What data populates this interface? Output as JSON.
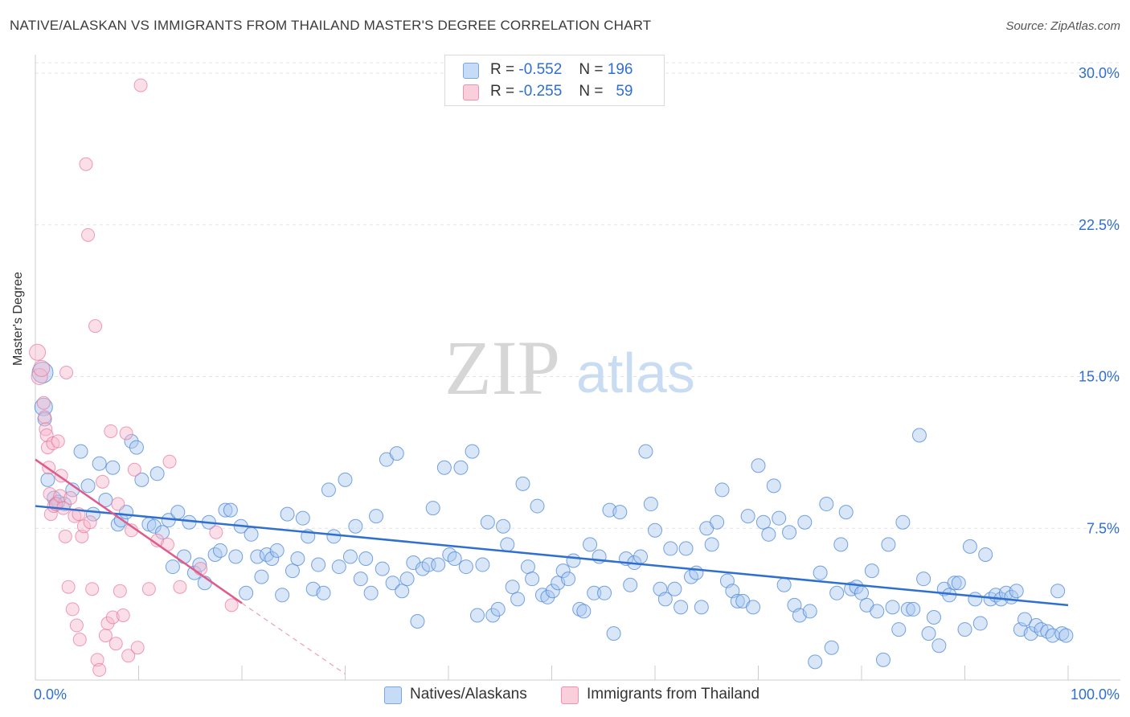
{
  "title": "NATIVE/ALASKAN VS IMMIGRANTS FROM THAILAND MASTER'S DEGREE CORRELATION CHART",
  "source": "Source: ZipAtlas.com",
  "watermark": {
    "zip": "ZIP",
    "atlas": "atlas"
  },
  "legend_top": [
    {
      "r_label": "R =",
      "r_value": "-0.552",
      "n_label": "N =",
      "n_value": "196",
      "color": "#a8c8f0"
    },
    {
      "r_label": "R =",
      "r_value": "-0.255",
      "n_label": "N =",
      "n_value": "59",
      "color": "#f6b8cb"
    }
  ],
  "legend_bottom": [
    {
      "label": "Natives/Alaskans",
      "color": "#a8c8f0"
    },
    {
      "label": "Immigrants from Thailand",
      "color": "#f6b8cb"
    }
  ],
  "chart_data": {
    "type": "scatter",
    "title": "NATIVE/ALASKAN VS IMMIGRANTS FROM THAILAND MASTER'S DEGREE CORRELATION CHART",
    "xlabel": "",
    "ylabel": "Master's Degree",
    "xlim": [
      0,
      100
    ],
    "ylim": [
      0,
      30
    ],
    "x_tick_labels": [
      "0.0%",
      "100.0%"
    ],
    "y_ticks": [
      7.5,
      15.0,
      22.5,
      30.0
    ],
    "y_tick_labels": [
      "7.5%",
      "15.0%",
      "22.5%",
      "30.0%"
    ],
    "grid": true,
    "legend_position": "top-center",
    "colors": {
      "natives": "#4a86d8",
      "natives_fill": "#a8c8f0",
      "thailand": "#e8739a",
      "thailand_fill": "#f6b8cb"
    },
    "series": [
      {
        "name": "Natives/Alaskans",
        "r": -0.552,
        "n": 196,
        "trend": {
          "x": [
            0,
            100
          ],
          "y": [
            8.6,
            3.7
          ]
        },
        "points": [
          [
            0.7,
            15.2
          ],
          [
            0.8,
            13.5
          ],
          [
            0.9,
            12.9
          ],
          [
            1.2,
            9.9
          ],
          [
            1.8,
            9.0
          ],
          [
            2.0,
            8.7
          ],
          [
            2.2,
            8.8
          ],
          [
            2.8,
            8.7
          ],
          [
            3.6,
            9.4
          ],
          [
            4.4,
            11.3
          ],
          [
            5.1,
            9.6
          ],
          [
            5.6,
            8.2
          ],
          [
            6.2,
            10.7
          ],
          [
            6.8,
            8.9
          ],
          [
            7.5,
            10.5
          ],
          [
            8.0,
            7.7
          ],
          [
            8.3,
            7.9
          ],
          [
            8.8,
            8.3
          ],
          [
            9.3,
            11.8
          ],
          [
            9.8,
            11.5
          ],
          [
            10.3,
            9.9
          ],
          [
            11.0,
            7.7
          ],
          [
            11.5,
            7.6
          ],
          [
            11.8,
            10.2
          ],
          [
            12.3,
            7.3
          ],
          [
            12.9,
            7.9
          ],
          [
            13.3,
            5.6
          ],
          [
            13.8,
            8.3
          ],
          [
            14.4,
            6.1
          ],
          [
            14.9,
            7.8
          ],
          [
            15.4,
            5.3
          ],
          [
            15.9,
            5.7
          ],
          [
            16.4,
            4.8
          ],
          [
            16.8,
            7.8
          ],
          [
            17.4,
            6.2
          ],
          [
            17.9,
            6.4
          ],
          [
            18.4,
            8.4
          ],
          [
            18.9,
            8.4
          ],
          [
            19.4,
            6.1
          ],
          [
            19.9,
            7.6
          ],
          [
            20.4,
            4.3
          ],
          [
            20.9,
            7.2
          ],
          [
            21.5,
            6.1
          ],
          [
            21.9,
            5.1
          ],
          [
            22.4,
            6.2
          ],
          [
            22.9,
            6.0
          ],
          [
            23.4,
            6.4
          ],
          [
            23.9,
            4.2
          ],
          [
            24.4,
            8.2
          ],
          [
            24.9,
            5.4
          ],
          [
            25.4,
            6.0
          ],
          [
            25.9,
            8.0
          ],
          [
            26.4,
            7.1
          ],
          [
            26.9,
            4.5
          ],
          [
            27.4,
            5.7
          ],
          [
            27.9,
            4.3
          ],
          [
            28.4,
            9.4
          ],
          [
            28.9,
            7.1
          ],
          [
            29.4,
            5.6
          ],
          [
            30.0,
            9.9
          ],
          [
            30.5,
            6.1
          ],
          [
            31.0,
            7.6
          ],
          [
            31.5,
            5.0
          ],
          [
            32.0,
            6.0
          ],
          [
            32.5,
            4.3
          ],
          [
            33.0,
            8.1
          ],
          [
            33.6,
            5.5
          ],
          [
            34.0,
            10.9
          ],
          [
            34.6,
            4.8
          ],
          [
            35.0,
            11.2
          ],
          [
            35.5,
            4.4
          ],
          [
            36.0,
            5.0
          ],
          [
            36.6,
            5.8
          ],
          [
            37.0,
            2.9
          ],
          [
            37.5,
            5.5
          ],
          [
            38.1,
            5.7
          ],
          [
            38.5,
            8.5
          ],
          [
            39.0,
            5.7
          ],
          [
            39.6,
            10.5
          ],
          [
            40.1,
            6.2
          ],
          [
            40.6,
            6.0
          ],
          [
            41.2,
            10.5
          ],
          [
            41.7,
            5.6
          ],
          [
            42.3,
            11.3
          ],
          [
            42.8,
            3.2
          ],
          [
            43.3,
            5.7
          ],
          [
            43.8,
            7.8
          ],
          [
            44.3,
            3.2
          ],
          [
            44.8,
            3.5
          ],
          [
            45.3,
            7.6
          ],
          [
            45.7,
            6.7
          ],
          [
            46.2,
            4.6
          ],
          [
            46.7,
            4.0
          ],
          [
            47.2,
            9.7
          ],
          [
            47.7,
            5.6
          ],
          [
            48.1,
            5.0
          ],
          [
            48.6,
            8.6
          ],
          [
            49.1,
            4.2
          ],
          [
            49.6,
            4.1
          ],
          [
            50.1,
            4.4
          ],
          [
            50.6,
            4.8
          ],
          [
            51.1,
            5.4
          ],
          [
            51.6,
            5.0
          ],
          [
            52.1,
            5.9
          ],
          [
            52.7,
            3.5
          ],
          [
            53.1,
            3.4
          ],
          [
            53.7,
            6.7
          ],
          [
            54.1,
            4.3
          ],
          [
            54.6,
            6.1
          ],
          [
            55.1,
            4.3
          ],
          [
            55.6,
            8.4
          ],
          [
            56.0,
            2.3
          ],
          [
            56.6,
            8.3
          ],
          [
            57.2,
            6.0
          ],
          [
            57.6,
            4.7
          ],
          [
            58.0,
            5.8
          ],
          [
            58.6,
            6.1
          ],
          [
            59.1,
            11.3
          ],
          [
            59.6,
            8.7
          ],
          [
            60.0,
            7.4
          ],
          [
            60.5,
            4.5
          ],
          [
            61.0,
            4.0
          ],
          [
            61.5,
            6.5
          ],
          [
            61.9,
            4.5
          ],
          [
            62.5,
            3.6
          ],
          [
            63.0,
            6.5
          ],
          [
            63.5,
            5.1
          ],
          [
            64.0,
            5.3
          ],
          [
            64.5,
            3.6
          ],
          [
            65.0,
            7.5
          ],
          [
            65.5,
            6.7
          ],
          [
            66.0,
            7.8
          ],
          [
            66.5,
            9.4
          ],
          [
            67.0,
            4.9
          ],
          [
            67.5,
            4.4
          ],
          [
            68.0,
            3.9
          ],
          [
            68.5,
            3.9
          ],
          [
            69.0,
            8.1
          ],
          [
            69.5,
            3.6
          ],
          [
            70.0,
            10.6
          ],
          [
            70.5,
            7.8
          ],
          [
            71.0,
            7.2
          ],
          [
            71.5,
            9.6
          ],
          [
            72.0,
            8.0
          ],
          [
            72.5,
            4.7
          ],
          [
            73.0,
            7.3
          ],
          [
            73.5,
            3.7
          ],
          [
            74.0,
            3.2
          ],
          [
            74.5,
            7.8
          ],
          [
            75.0,
            3.4
          ],
          [
            75.5,
            0.9
          ],
          [
            76.0,
            5.3
          ],
          [
            76.6,
            8.7
          ],
          [
            77.1,
            1.6
          ],
          [
            77.6,
            4.3
          ],
          [
            78.0,
            6.7
          ],
          [
            78.5,
            8.3
          ],
          [
            79.0,
            4.5
          ],
          [
            79.5,
            4.6
          ],
          [
            80.0,
            4.3
          ],
          [
            80.5,
            3.7
          ],
          [
            81.0,
            5.4
          ],
          [
            81.5,
            3.4
          ],
          [
            82.1,
            1.0
          ],
          [
            82.6,
            6.7
          ],
          [
            83.0,
            3.6
          ],
          [
            83.6,
            2.5
          ],
          [
            84.0,
            7.8
          ],
          [
            84.5,
            3.5
          ],
          [
            85.0,
            3.5
          ],
          [
            85.6,
            12.1
          ],
          [
            86.0,
            5.0
          ],
          [
            86.5,
            2.3
          ],
          [
            87.0,
            3.1
          ],
          [
            87.5,
            1.7
          ],
          [
            88.0,
            4.5
          ],
          [
            88.5,
            4.2
          ],
          [
            89.0,
            4.8
          ],
          [
            89.4,
            4.8
          ],
          [
            90.0,
            2.5
          ],
          [
            90.5,
            6.6
          ],
          [
            91.0,
            4.0
          ],
          [
            91.5,
            2.8
          ],
          [
            92.0,
            6.2
          ],
          [
            92.5,
            4.0
          ],
          [
            93.0,
            4.2
          ],
          [
            93.5,
            4.0
          ],
          [
            94.0,
            4.3
          ],
          [
            94.5,
            4.1
          ],
          [
            95.0,
            4.4
          ],
          [
            95.4,
            2.5
          ],
          [
            95.8,
            3.0
          ],
          [
            96.4,
            2.3
          ],
          [
            96.9,
            2.7
          ],
          [
            97.4,
            2.5
          ],
          [
            98.0,
            2.4
          ],
          [
            98.5,
            2.2
          ],
          [
            99.0,
            4.4
          ],
          [
            99.4,
            2.3
          ],
          [
            99.8,
            2.2
          ]
        ]
      },
      {
        "name": "Immigrants from Thailand",
        "r": -0.255,
        "n": 59,
        "trend": {
          "x": [
            0,
            20
          ],
          "y": [
            10.9,
            3.8
          ]
        },
        "trend_dashed": {
          "x": [
            20,
            30
          ],
          "y": [
            3.8,
            0.3
          ]
        },
        "points": [
          [
            0.2,
            16.2
          ],
          [
            0.4,
            15.0
          ],
          [
            0.6,
            15.4
          ],
          [
            0.8,
            13.7
          ],
          [
            0.9,
            13.0
          ],
          [
            1.0,
            12.4
          ],
          [
            1.1,
            12.1
          ],
          [
            1.2,
            11.5
          ],
          [
            1.3,
            10.5
          ],
          [
            1.4,
            9.2
          ],
          [
            1.5,
            8.2
          ],
          [
            1.7,
            11.7
          ],
          [
            1.8,
            8.6
          ],
          [
            2.0,
            8.7
          ],
          [
            2.2,
            11.8
          ],
          [
            2.4,
            9.1
          ],
          [
            2.5,
            10.1
          ],
          [
            2.7,
            8.5
          ],
          [
            2.9,
            7.1
          ],
          [
            3.0,
            15.2
          ],
          [
            3.2,
            4.6
          ],
          [
            3.4,
            9.0
          ],
          [
            3.6,
            3.5
          ],
          [
            3.8,
            8.1
          ],
          [
            4.0,
            2.7
          ],
          [
            4.2,
            8.2
          ],
          [
            4.3,
            2.0
          ],
          [
            4.5,
            7.1
          ],
          [
            4.7,
            7.6
          ],
          [
            4.9,
            25.5
          ],
          [
            5.1,
            22.0
          ],
          [
            5.3,
            7.8
          ],
          [
            5.5,
            4.5
          ],
          [
            5.8,
            17.5
          ],
          [
            6.0,
            1.0
          ],
          [
            6.2,
            0.5
          ],
          [
            6.5,
            9.8
          ],
          [
            6.8,
            2.2
          ],
          [
            7.0,
            2.8
          ],
          [
            7.3,
            12.3
          ],
          [
            7.5,
            3.1
          ],
          [
            7.8,
            1.8
          ],
          [
            8.0,
            8.7
          ],
          [
            8.2,
            4.4
          ],
          [
            8.5,
            3.2
          ],
          [
            8.8,
            12.2
          ],
          [
            9.0,
            1.2
          ],
          [
            9.3,
            7.4
          ],
          [
            9.6,
            10.4
          ],
          [
            9.9,
            1.6
          ],
          [
            10.2,
            29.4
          ],
          [
            11.0,
            4.5
          ],
          [
            11.8,
            6.9
          ],
          [
            12.8,
            6.7
          ],
          [
            13.0,
            10.8
          ],
          [
            14.0,
            4.6
          ],
          [
            16.0,
            5.5
          ],
          [
            17.5,
            7.3
          ],
          [
            19.0,
            3.7
          ]
        ]
      }
    ]
  }
}
